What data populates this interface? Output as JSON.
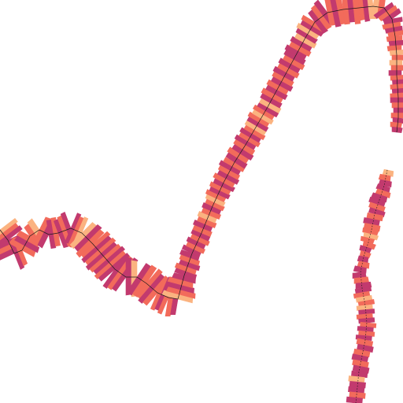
{
  "map": {
    "background": "#ffffff",
    "palette": [
      "#c23a6e",
      "#d94a5f",
      "#e8565e",
      "#f26b5b",
      "#fbb380",
      "#b5357a"
    ],
    "track_line_color": "#1a1a1a",
    "routes": [
      {
        "id": "main-route",
        "segments": 70
      },
      {
        "id": "right-branch",
        "segments": 30
      }
    ]
  }
}
